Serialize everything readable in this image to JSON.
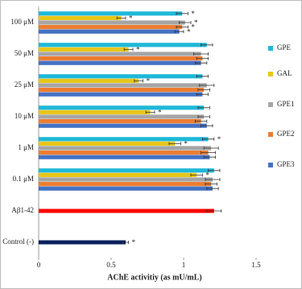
{
  "chart_data": {
    "type": "bar",
    "orientation": "horizontal",
    "x_label": "AChE activitiy (as mU/mL)",
    "categories": [
      "100 μM",
      "50 μM",
      "25 μM",
      "10 μM",
      "1 μM",
      "0.1 μM"
    ],
    "series": [
      {
        "name": "GPE",
        "color": "#1fb8d8",
        "values": [
          0.99,
          1.16,
          1.13,
          1.14,
          1.17,
          1.21
        ],
        "errors": [
          0.04,
          0.04,
          0.04,
          0.04,
          0.04,
          0.04
        ],
        "marks": [
          "*",
          null,
          null,
          null,
          "*",
          null
        ]
      },
      {
        "name": "GAL",
        "color": "#e8c619",
        "values": [
          0.57,
          0.62,
          0.69,
          0.77,
          0.94,
          1.09
        ],
        "errors": [
          0.03,
          0.03,
          0.03,
          0.03,
          0.04,
          0.04
        ],
        "marks": [
          "*",
          "*",
          "*",
          "*",
          "*",
          "*"
        ]
      },
      {
        "name": "GPE1",
        "color": "#a5a5a5",
        "values": [
          1.01,
          1.12,
          1.16,
          1.14,
          1.19,
          1.2
        ],
        "errors": [
          0.04,
          0.05,
          0.05,
          0.04,
          0.05,
          0.05
        ],
        "marks": [
          "*",
          null,
          null,
          null,
          null,
          null
        ]
      },
      {
        "name": "GPE2",
        "color": "#ed7d31",
        "values": [
          0.99,
          1.13,
          1.14,
          1.12,
          1.17,
          1.19
        ],
        "errors": [
          0.04,
          0.04,
          0.04,
          0.04,
          0.05,
          0.04
        ],
        "marks": [
          "*",
          null,
          null,
          null,
          null,
          null
        ]
      },
      {
        "name": "GPE3",
        "color": "#4472c4",
        "values": [
          0.97,
          1.12,
          1.13,
          1.16,
          1.18,
          1.2
        ],
        "errors": [
          0.03,
          0.04,
          0.04,
          0.04,
          0.04,
          0.04
        ],
        "marks": [
          "*",
          null,
          null,
          null,
          null,
          null
        ]
      }
    ],
    "single_bars": [
      {
        "label": "Aβ1-42",
        "color": "#ff0000",
        "value": 1.21,
        "error": 0.05
      },
      {
        "label": "Control (-)",
        "color": "#0a1f5c",
        "value": 0.6,
        "error": 0.02,
        "mark": "*"
      }
    ],
    "xlim": [
      0,
      1.6
    ],
    "xticks": [
      0,
      0.5,
      1,
      1.5
    ],
    "legend": "right"
  }
}
